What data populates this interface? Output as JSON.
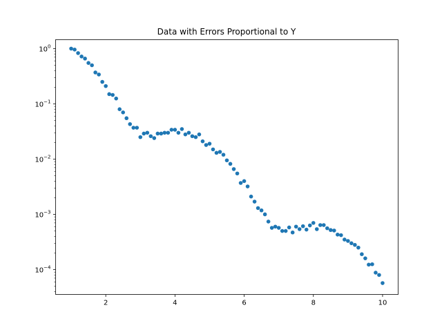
{
  "chart_data": {
    "type": "scatter",
    "title": "Data with Errors Proportional to Y",
    "xlabel": "",
    "ylabel": "",
    "xlim": [
      0.55,
      10.45
    ],
    "ylim": [
      3.55e-05,
      1.45
    ],
    "yscale": "log",
    "x_ticks": [
      2,
      4,
      6,
      8,
      10
    ],
    "x_tick_labels": [
      "2",
      "4",
      "6",
      "8",
      "10"
    ],
    "y_ticks": [
      0.0001,
      0.001,
      0.01,
      0.1,
      1
    ],
    "y_tick_bases": [
      "10",
      "10",
      "10",
      "10",
      "10"
    ],
    "y_tick_exponents": [
      "−4",
      "−3",
      "−2",
      "−1",
      "0"
    ],
    "marker_color": "#1f77b4",
    "grid": false,
    "series": [
      {
        "x": [
          1.0,
          1.1,
          1.2,
          1.3,
          1.4,
          1.5,
          1.6,
          1.7,
          1.8,
          1.9,
          2.0,
          2.1,
          2.2,
          2.3,
          2.4,
          2.5,
          2.6,
          2.7,
          2.8,
          2.9,
          3.0,
          3.1,
          3.2,
          3.3,
          3.4,
          3.5,
          3.6,
          3.7,
          3.8,
          3.9,
          4.0,
          4.1,
          4.2,
          4.3,
          4.4,
          4.5,
          4.6,
          4.7,
          4.8,
          4.9,
          5.0,
          5.1,
          5.2,
          5.3,
          5.4,
          5.5,
          5.6,
          5.7,
          5.8,
          5.9,
          6.0,
          6.1,
          6.2,
          6.3,
          6.4,
          6.5,
          6.6,
          6.7,
          6.8,
          6.9,
          7.0,
          7.1,
          7.2,
          7.3,
          7.4,
          7.5,
          7.6,
          7.7,
          7.8,
          7.9,
          8.0,
          8.1,
          8.2,
          8.3,
          8.4,
          8.5,
          8.6,
          8.7,
          8.8,
          8.9,
          9.0,
          9.1,
          9.2,
          9.3,
          9.4,
          9.5,
          9.6,
          9.7,
          9.8,
          9.9,
          10.0
        ],
        "y": [
          1.0,
          0.96,
          0.83,
          0.72,
          0.66,
          0.55,
          0.5,
          0.37,
          0.34,
          0.25,
          0.21,
          0.15,
          0.145,
          0.125,
          0.08,
          0.07,
          0.055,
          0.043,
          0.037,
          0.037,
          0.025,
          0.029,
          0.03,
          0.026,
          0.024,
          0.029,
          0.029,
          0.03,
          0.03,
          0.034,
          0.034,
          0.03,
          0.035,
          0.028,
          0.03,
          0.026,
          0.025,
          0.028,
          0.021,
          0.018,
          0.019,
          0.015,
          0.013,
          0.0135,
          0.012,
          0.0095,
          0.0082,
          0.0066,
          0.0055,
          0.0037,
          0.004,
          0.0032,
          0.0021,
          0.0017,
          0.0013,
          0.00118,
          0.001,
          0.00074,
          0.00057,
          0.0006,
          0.00057,
          0.0005,
          0.0005,
          0.00058,
          0.00047,
          0.0006,
          0.00054,
          0.00061,
          0.00053,
          0.00063,
          0.0007,
          0.00054,
          0.00064,
          0.00064,
          0.00056,
          0.00052,
          0.00051,
          0.00043,
          0.00042,
          0.00035,
          0.00033,
          0.0003,
          0.00028,
          0.00025,
          0.00019,
          0.00016,
          0.000123,
          0.000125,
          8.8e-05,
          8e-05,
          5.7e-05
        ]
      }
    ]
  }
}
